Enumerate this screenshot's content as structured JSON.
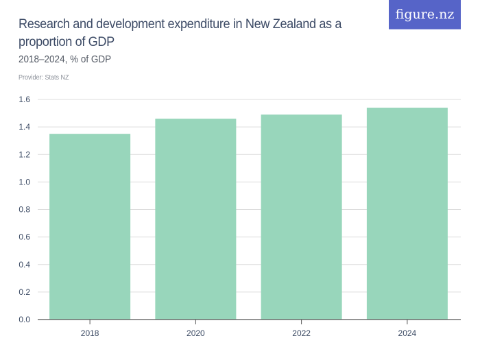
{
  "header": {
    "title": "Research and development expenditure in New Zealand as a proportion of GDP",
    "subtitle": "2018–2024, % of GDP",
    "provider": "Provider: Stats NZ",
    "logo_text": "figure.nz"
  },
  "colors": {
    "bar": "#98d6bb",
    "grid": "#dcdcdc",
    "axis": "#555555",
    "text": "#3b4a63",
    "logo_bg": "#5664c8"
  },
  "chart_data": {
    "type": "bar",
    "title": "Research and development expenditure in New Zealand as a proportion of GDP",
    "subtitle": "2018–2024, % of GDP",
    "xlabel": "",
    "ylabel": "% of GDP",
    "categories": [
      "2018",
      "2020",
      "2022",
      "2024"
    ],
    "values": [
      1.35,
      1.46,
      1.49,
      1.54
    ],
    "ylim": [
      0,
      1.6
    ],
    "yticks": [
      "0.0",
      "0.2",
      "0.4",
      "0.6",
      "0.8",
      "1.0",
      "1.2",
      "1.4",
      "1.6"
    ],
    "grid": true,
    "legend": "none",
    "source": "Provider: Stats NZ"
  }
}
